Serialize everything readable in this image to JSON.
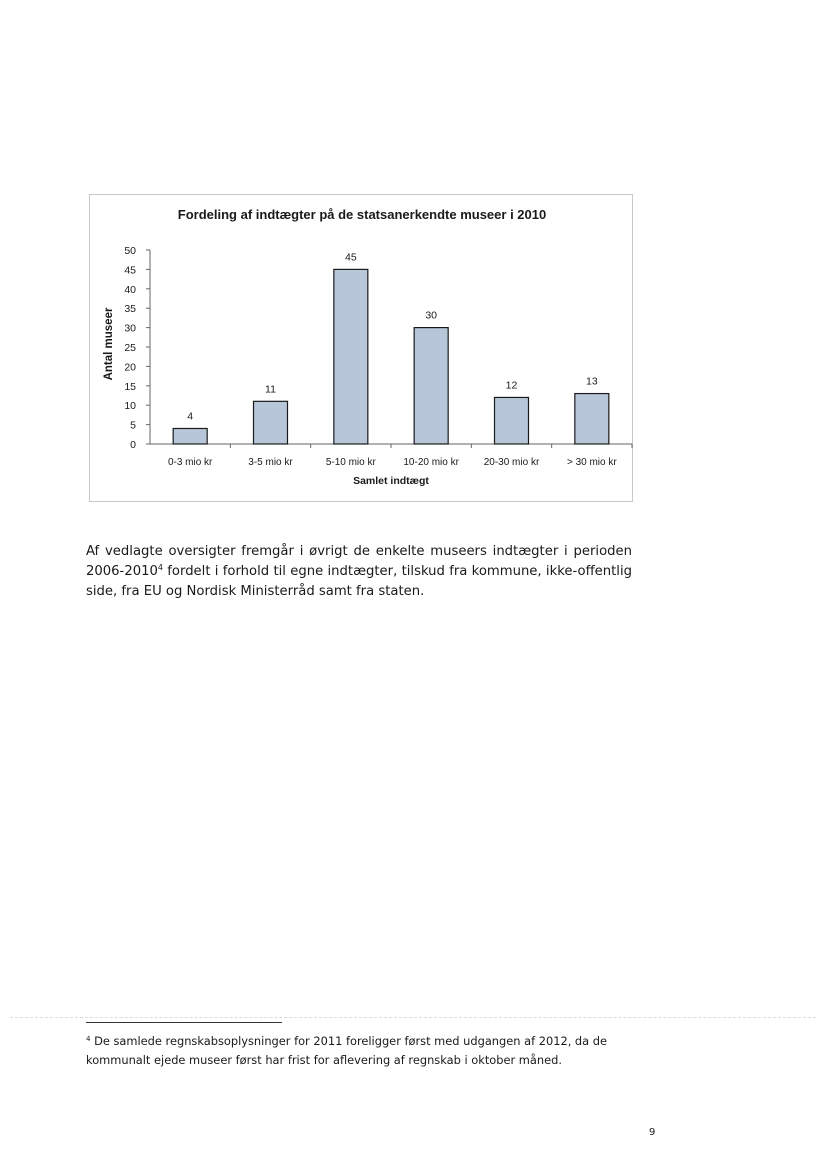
{
  "chart_data": {
    "type": "bar",
    "title": "Fordeling af indtægter på de statsanerkendte museer i 2010",
    "xlabel": "Samlet indtægt",
    "ylabel": "Antal museer",
    "categories": [
      "0-3 mio kr",
      "3-5 mio kr",
      "5-10 mio kr",
      "10-20 mio kr",
      "20-30 mio kr",
      "> 30 mio kr"
    ],
    "values": [
      4,
      11,
      45,
      30,
      12,
      13
    ],
    "ylim": [
      0,
      50
    ],
    "yticks": [
      0,
      5,
      10,
      15,
      20,
      25,
      30,
      35,
      40,
      45,
      50
    ],
    "data_labels": true,
    "grid": false,
    "legend": "none",
    "bar_color": "#b7c6d8",
    "bar_edge_color": "#1a1a1a"
  },
  "body": {
    "text_before": "Af vedlagte oversigter fremgår i øvrigt de enkelte museers indtægter i perioden 2006-2010",
    "footnote_ref": "4",
    "text_after": " fordelt i forhold til egne indtægter, tilskud fra kommune, ikke-offentlig side, fra EU og Nordisk Ministerråd samt fra staten."
  },
  "footnote": {
    "marker": "4",
    "text": " De samlede regnskabsoplysninger for 2011 foreligger først med udgangen af 2012, da de kommunalt ejede museer først har frist for aflevering af regnskab i oktober måned."
  },
  "page_number": "9"
}
